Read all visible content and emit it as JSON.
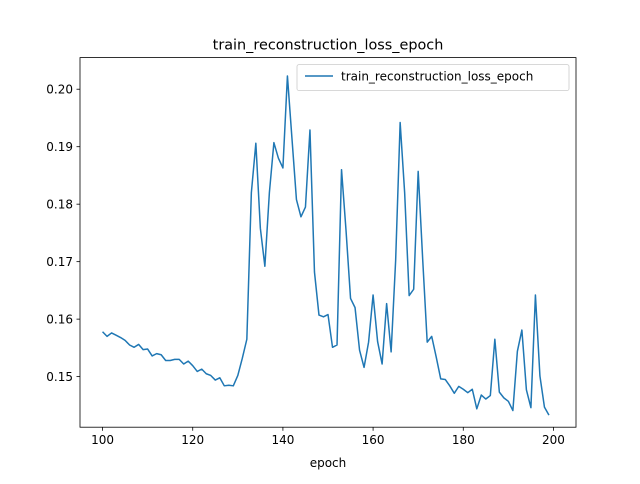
{
  "chart_data": {
    "type": "line",
    "title": "train_reconstruction_loss_epoch",
    "xlabel": "epoch",
    "ylabel": "",
    "xlim": [
      95,
      205
    ],
    "ylim": [
      0.1412,
      0.2055
    ],
    "xticks": [
      100,
      120,
      140,
      160,
      180,
      200
    ],
    "xtick_labels": [
      "100",
      "120",
      "140",
      "160",
      "180",
      "200"
    ],
    "yticks": [
      0.15,
      0.16,
      0.17,
      0.18,
      0.19,
      0.2
    ],
    "ytick_labels": [
      "0.15",
      "0.16",
      "0.17",
      "0.18",
      "0.19",
      "0.20"
    ],
    "legend": {
      "position": "top-right"
    },
    "grid": false,
    "series": [
      {
        "name": "train_reconstruction_loss_epoch",
        "color": "#1f77b4",
        "x": [
          100,
          101,
          102,
          103,
          104,
          105,
          106,
          107,
          108,
          109,
          110,
          111,
          112,
          113,
          114,
          115,
          116,
          117,
          118,
          119,
          120,
          121,
          122,
          123,
          124,
          125,
          126,
          127,
          128,
          129,
          130,
          131,
          132,
          133,
          134,
          135,
          136,
          137,
          138,
          139,
          140,
          141,
          142,
          143,
          144,
          145,
          146,
          147,
          148,
          149,
          150,
          151,
          152,
          153,
          154,
          155,
          156,
          157,
          158,
          159,
          160,
          161,
          162,
          163,
          164,
          165,
          166,
          167,
          168,
          169,
          170,
          171,
          172,
          173,
          174,
          175,
          176,
          177,
          178,
          179,
          180,
          181,
          182,
          183,
          184,
          185,
          186,
          187,
          188,
          189,
          190,
          191,
          192,
          193,
          194,
          195,
          196,
          197,
          198,
          199
        ],
        "y": [
          0.1578,
          0.157,
          0.1576,
          0.1572,
          0.1568,
          0.1563,
          0.1555,
          0.1551,
          0.1556,
          0.1547,
          0.1548,
          0.1536,
          0.154,
          0.1538,
          0.1528,
          0.1528,
          0.153,
          0.153,
          0.1522,
          0.1527,
          0.1519,
          0.1509,
          0.1513,
          0.1505,
          0.1502,
          0.1494,
          0.1498,
          0.1484,
          0.1485,
          0.1484,
          0.1502,
          0.1532,
          0.1565,
          0.182,
          0.1906,
          0.1758,
          0.1692,
          0.182,
          0.1907,
          0.188,
          0.1863,
          0.2023,
          0.1915,
          0.1808,
          0.1778,
          0.1795,
          0.1929,
          0.1682,
          0.1607,
          0.1604,
          0.1608,
          0.1551,
          0.1555,
          0.186,
          0.1754,
          0.1636,
          0.162,
          0.1546,
          0.1516,
          0.156,
          0.1642,
          0.1561,
          0.1522,
          0.1627,
          0.1543,
          0.1702,
          0.1942,
          0.182,
          0.1641,
          0.1652,
          0.1857,
          0.1704,
          0.156,
          0.157,
          0.1534,
          0.1496,
          0.1495,
          0.1484,
          0.1471,
          0.1483,
          0.1478,
          0.1472,
          0.1478,
          0.1444,
          0.1468,
          0.1461,
          0.1467,
          0.1565,
          0.1473,
          0.1463,
          0.1457,
          0.1441,
          0.1544,
          0.1581,
          0.1477,
          0.1446,
          0.1642,
          0.1501,
          0.1447,
          0.1433
        ]
      }
    ]
  }
}
